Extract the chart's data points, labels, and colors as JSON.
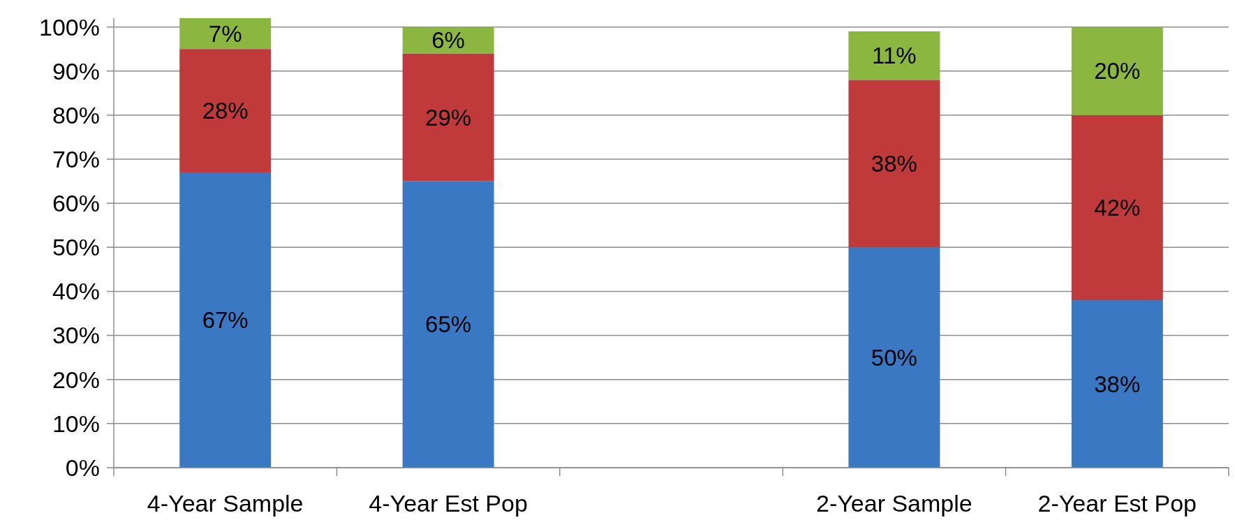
{
  "chart_data": {
    "type": "bar",
    "stacked": true,
    "categories": [
      "4-Year Sample",
      "4-Year Est Pop",
      null,
      "2-Year Sample",
      "2-Year Est Pop"
    ],
    "series": [
      {
        "color": "#3a78c4",
        "values": [
          67,
          65,
          null,
          50,
          38
        ],
        "value_labels": [
          "67%",
          "65%",
          null,
          "50%",
          "38%"
        ]
      },
      {
        "color": "#c0393b",
        "values": [
          28,
          29,
          null,
          38,
          42
        ],
        "value_labels": [
          "28%",
          "29%",
          null,
          "38%",
          "42%"
        ]
      },
      {
        "color": "#8bb640",
        "values": [
          7,
          6,
          null,
          11,
          20
        ],
        "value_labels": [
          "7%",
          "6%",
          null,
          "11%",
          "20%"
        ]
      }
    ],
    "ylim": [
      0,
      102
    ],
    "yticks": [
      {
        "value": 0,
        "label": "0%"
      },
      {
        "value": 10,
        "label": "10%"
      },
      {
        "value": 20,
        "label": "20%"
      },
      {
        "value": 30,
        "label": "30%"
      },
      {
        "value": 40,
        "label": "40%"
      },
      {
        "value": 50,
        "label": "50%"
      },
      {
        "value": 60,
        "label": "60%"
      },
      {
        "value": 70,
        "label": "70%"
      },
      {
        "value": 80,
        "label": "80%"
      },
      {
        "value": 90,
        "label": "90%"
      },
      {
        "value": 100,
        "label": "100%"
      }
    ],
    "grid": "y"
  }
}
